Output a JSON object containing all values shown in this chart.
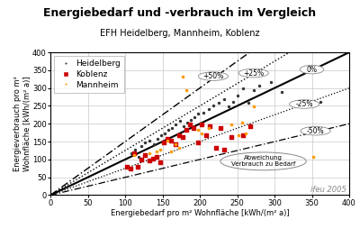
{
  "title": "Energiebedarf und -verbrauch im Vergleich",
  "subtitle": "EFH Heidelberg, Mannheim, Koblenz",
  "xlabel_full": "Energiebedarf pro m² Wohnfläche [kWh/(m² a)]",
  "ylabel": "Energieverbrauch pro m²\nWohnfläche [kWh/(m² a)]",
  "watermark": "ifeu 2005",
  "xlim": [
    0,
    400
  ],
  "ylim": [
    0,
    400
  ],
  "xticks": [
    0,
    50,
    100,
    150,
    200,
    250,
    300,
    350,
    400
  ],
  "yticks": [
    0,
    50,
    100,
    150,
    200,
    250,
    300,
    350,
    400
  ],
  "heidelberg_x": [
    108,
    113,
    118,
    122,
    127,
    133,
    138,
    143,
    148,
    153,
    158,
    163,
    168,
    173,
    178,
    183,
    188,
    193,
    198,
    205,
    212,
    218,
    225,
    232,
    238,
    244,
    250,
    258,
    265,
    272,
    280,
    295,
    310,
    342,
    352,
    362
  ],
  "heidelberg_y": [
    118,
    128,
    108,
    138,
    148,
    152,
    143,
    158,
    168,
    173,
    182,
    188,
    198,
    208,
    193,
    202,
    212,
    218,
    228,
    232,
    242,
    252,
    258,
    268,
    248,
    262,
    278,
    298,
    258,
    293,
    308,
    318,
    288,
    262,
    258,
    262
  ],
  "koblenz_x": [
    102,
    107,
    112,
    117,
    122,
    127,
    132,
    137,
    142,
    147,
    152,
    157,
    162,
    167,
    172,
    177,
    182,
    187,
    192,
    197,
    202,
    208,
    213,
    222,
    228,
    233,
    242,
    258,
    267
  ],
  "koblenz_y": [
    80,
    75,
    118,
    80,
    100,
    112,
    98,
    103,
    108,
    93,
    148,
    158,
    153,
    143,
    168,
    163,
    183,
    198,
    188,
    148,
    198,
    168,
    193,
    133,
    188,
    128,
    163,
    168,
    193
  ],
  "mannheim_x": [
    112,
    132,
    142,
    147,
    157,
    162,
    167,
    172,
    177,
    182,
    197,
    202,
    212,
    242,
    252,
    257,
    262,
    272,
    352
  ],
  "mannheim_y": [
    112,
    118,
    122,
    128,
    153,
    122,
    143,
    132,
    333,
    293,
    183,
    172,
    188,
    198,
    168,
    202,
    172,
    248,
    108
  ],
  "annotation_text": "Abweichung\nVerbrauch zu Bedarf",
  "bg_color": "#ffffff",
  "grid_color": "#c8c8c8",
  "heidelberg_color": "#333333",
  "koblenz_color": "#cc0000",
  "mannheim_color": "#ff9900",
  "title_fontsize": 9,
  "subtitle_fontsize": 7,
  "axis_label_fontsize": 6,
  "tick_fontsize": 6,
  "legend_fontsize": 6.5,
  "watermark_fontsize": 6
}
